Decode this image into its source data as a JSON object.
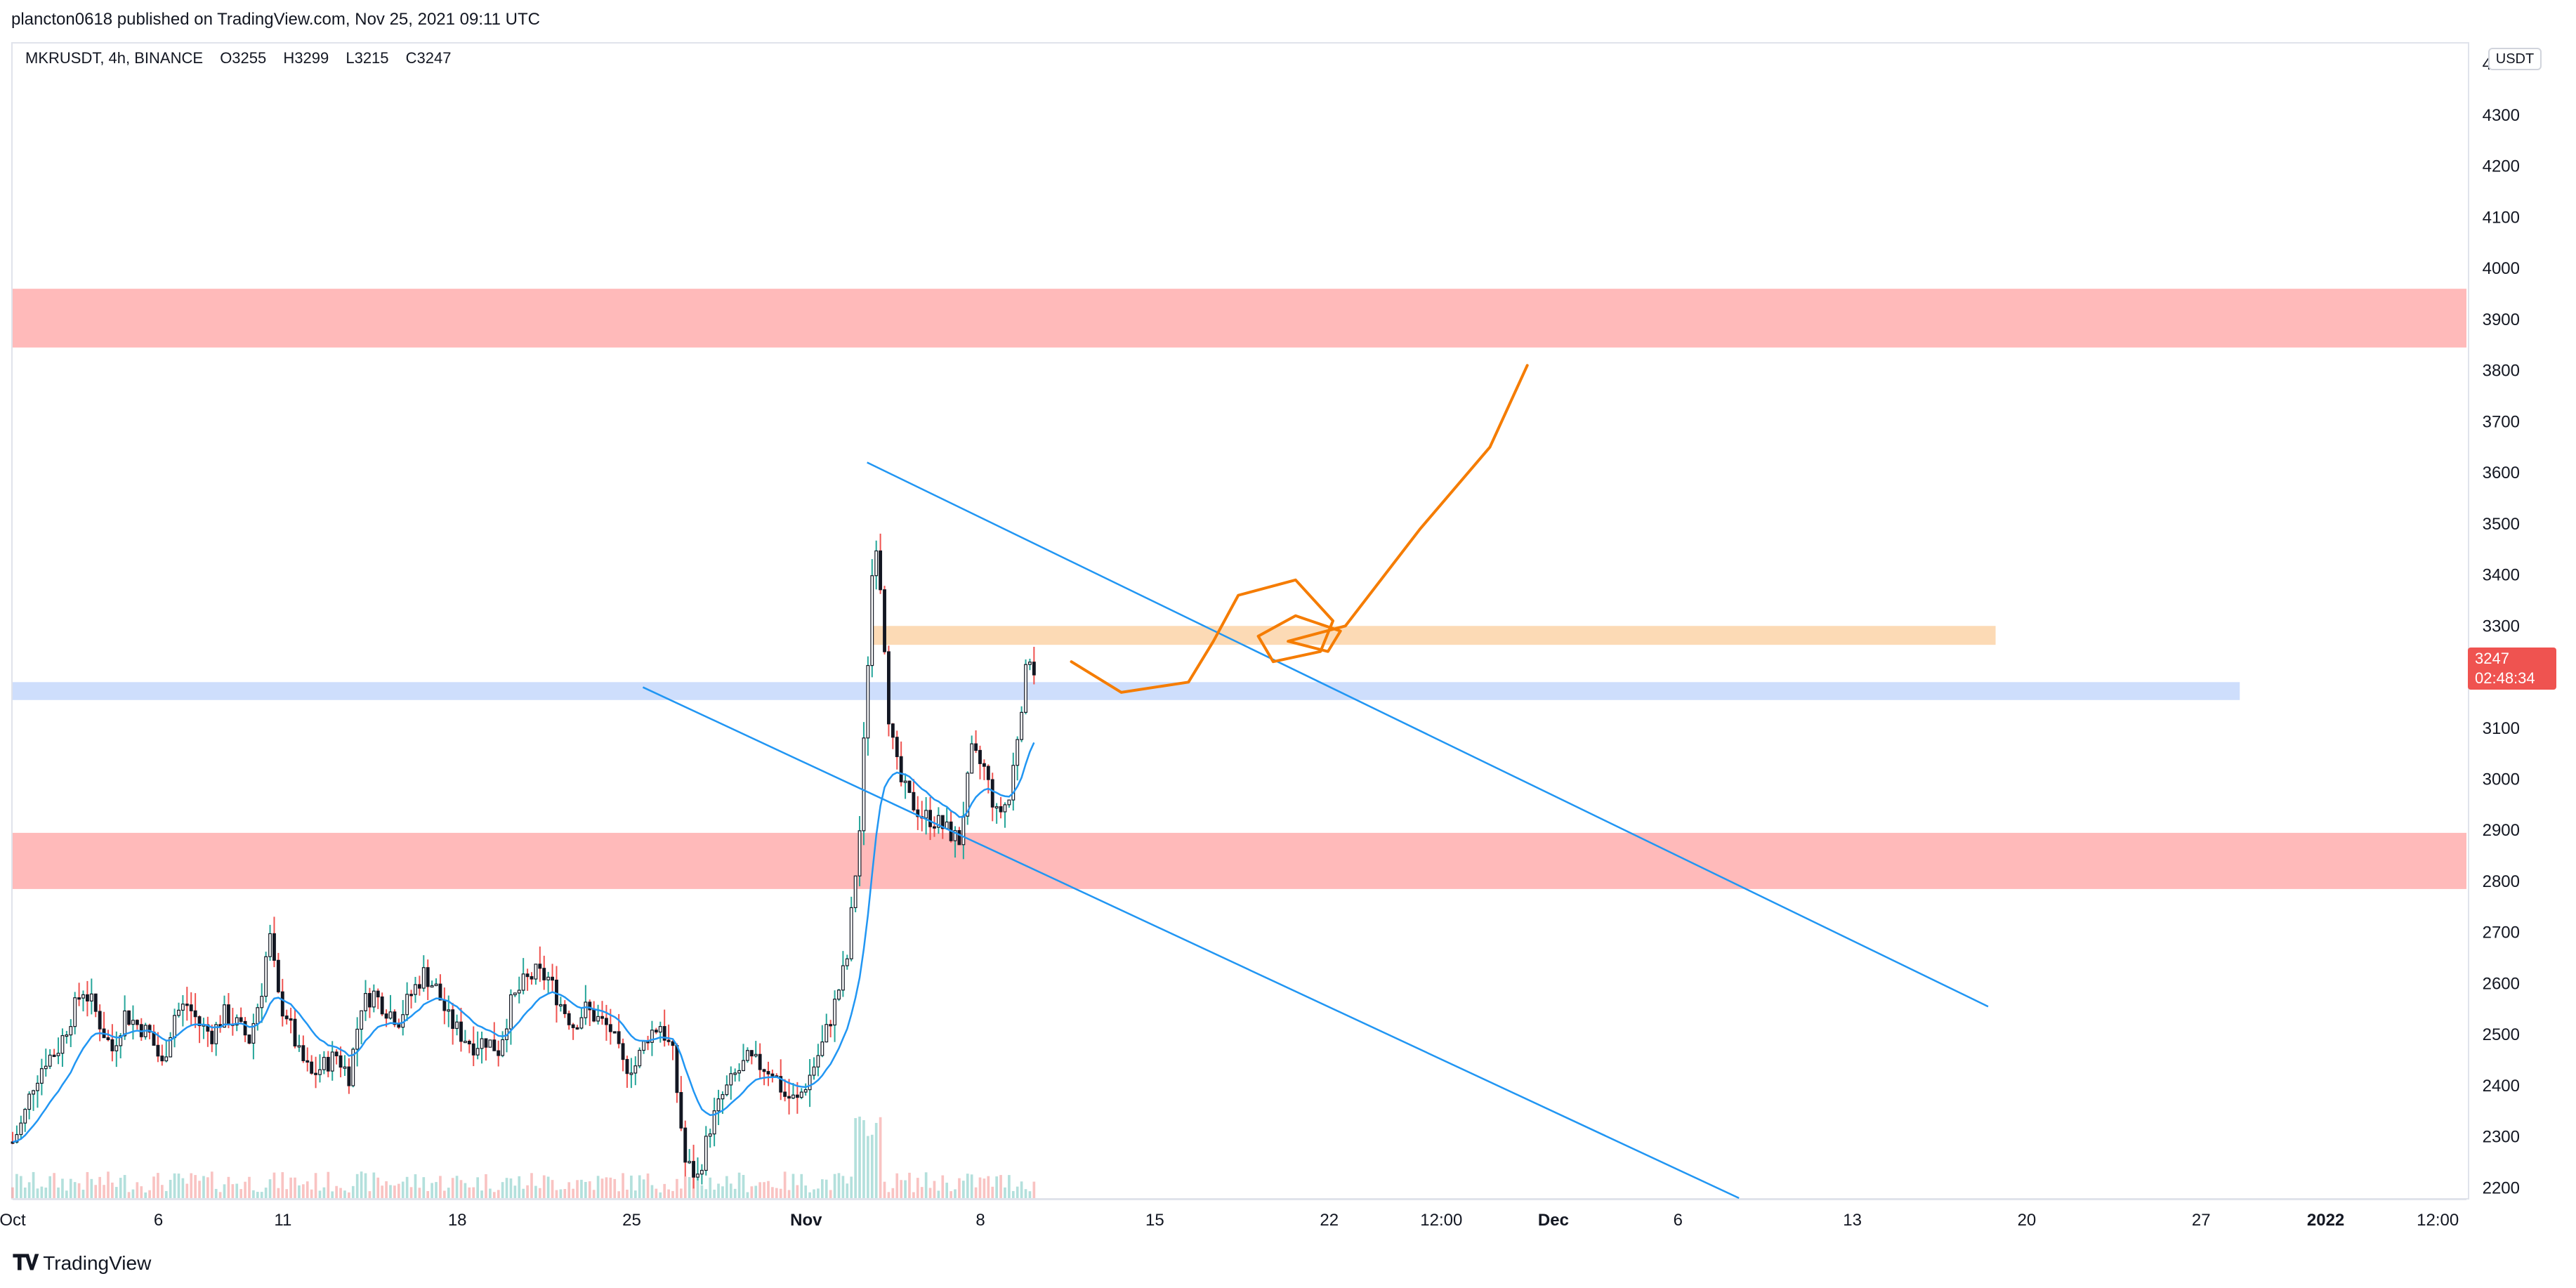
{
  "header": {
    "published": "plancton0618 published on TradingView.com, Nov 25, 2021 09:11 UTC"
  },
  "legend": {
    "symbol": "MKRUSDT, 4h, BINANCE",
    "open": "O3255",
    "high": "H3299",
    "low": "L3215",
    "close": "C3247"
  },
  "price_axis": {
    "unit": "USDT",
    "last_price": "3247",
    "countdown": "02:48:34",
    "last_price_color": "#ef5350"
  },
  "footer": {
    "brand": "TradingView",
    "logo_icon": "tradingview-logo-icon"
  },
  "colors": {
    "up": "#26a69a",
    "down": "#ef5350",
    "body": "#131722",
    "ma": "#2196f3",
    "trend": "#2196f3",
    "zone_red": "#ffb3b3",
    "zone_orange": "#fbd3a8",
    "zone_blue": "#c5d8fb",
    "drawing": "#f57c00"
  },
  "chart_data": {
    "type": "candlestick",
    "title": "MKRUSDT, 4h, BINANCE",
    "ylim": [
      2180,
      4440
    ],
    "y_ticks": [
      2200,
      2300,
      2400,
      2500,
      2600,
      2700,
      2800,
      2900,
      3000,
      3100,
      3200,
      3300,
      3400,
      3500,
      3600,
      3700,
      3800,
      3900,
      4000,
      4100,
      4200,
      4300,
      4400
    ],
    "x_range_days": [
      0,
      41.5
    ],
    "x_ticks": [
      {
        "label": "Oct",
        "day": 0
      },
      {
        "label": "6",
        "day": 5.85
      },
      {
        "label": "11",
        "day": 10.85
      },
      {
        "label": "18",
        "day": 17.85
      },
      {
        "label": "25",
        "day": 24.85
      },
      {
        "label": "Nov",
        "day": 31.85
      },
      {
        "label": "8",
        "day": 38.85
      },
      {
        "label": "15",
        "day": 45.85
      },
      {
        "label": "22",
        "day": 52.85
      },
      {
        "label": "12:00",
        "day": 57.35
      },
      {
        "label": "Dec",
        "day": 61.85
      },
      {
        "label": "6",
        "day": 66.85
      },
      {
        "label": "13",
        "day": 73.85
      },
      {
        "label": "20",
        "day": 80.85
      },
      {
        "label": "27",
        "day": 87.85
      },
      {
        "label": "2022",
        "day": 92.85
      },
      {
        "label": "12:00",
        "day": 97.35
      }
    ],
    "x_axis_days_start": 0,
    "x_axis_days_end": 98.5,
    "price_path": [
      [
        0,
        2290
      ],
      [
        0.4,
        2330
      ],
      [
        0.8,
        2400
      ],
      [
        1.3,
        2450
      ],
      [
        1.8,
        2470
      ],
      [
        2.3,
        2530
      ],
      [
        2.8,
        2590
      ],
      [
        3.2,
        2560
      ],
      [
        3.6,
        2510
      ],
      [
        4.0,
        2470
      ],
      [
        4.5,
        2540
      ],
      [
        5.0,
        2520
      ],
      [
        5.5,
        2500
      ],
      [
        6.0,
        2440
      ],
      [
        6.5,
        2540
      ],
      [
        7.0,
        2560
      ],
      [
        7.5,
        2520
      ],
      [
        8.0,
        2500
      ],
      [
        8.5,
        2540
      ],
      [
        9.0,
        2520
      ],
      [
        9.5,
        2490
      ],
      [
        10.0,
        2590
      ],
      [
        10.3,
        2700
      ],
      [
        10.7,
        2560
      ],
      [
        11.0,
        2540
      ],
      [
        11.5,
        2460
      ],
      [
        12.0,
        2420
      ],
      [
        12.5,
        2440
      ],
      [
        13.0,
        2460
      ],
      [
        13.5,
        2420
      ],
      [
        14.0,
        2560
      ],
      [
        14.5,
        2580
      ],
      [
        15.0,
        2550
      ],
      [
        15.5,
        2530
      ],
      [
        16.0,
        2580
      ],
      [
        16.5,
        2620
      ],
      [
        17.0,
        2590
      ],
      [
        17.5,
        2530
      ],
      [
        18.0,
        2500
      ],
      [
        18.5,
        2480
      ],
      [
        19.0,
        2490
      ],
      [
        19.5,
        2470
      ],
      [
        20.0,
        2560
      ],
      [
        20.5,
        2600
      ],
      [
        21.0,
        2620
      ],
      [
        21.5,
        2610
      ],
      [
        22.0,
        2560
      ],
      [
        22.5,
        2520
      ],
      [
        23.0,
        2550
      ],
      [
        23.5,
        2530
      ],
      [
        24.0,
        2510
      ],
      [
        24.5,
        2440
      ],
      [
        25.0,
        2440
      ],
      [
        25.5,
        2500
      ],
      [
        26.0,
        2520
      ],
      [
        26.5,
        2460
      ],
      [
        27.0,
        2250
      ],
      [
        27.5,
        2220
      ],
      [
        28.0,
        2320
      ],
      [
        28.5,
        2380
      ],
      [
        29.0,
        2420
      ],
      [
        29.5,
        2450
      ],
      [
        30.0,
        2440
      ],
      [
        30.5,
        2430
      ],
      [
        31.0,
        2380
      ],
      [
        31.5,
        2370
      ],
      [
        32.0,
        2420
      ],
      [
        32.5,
        2480
      ],
      [
        33.0,
        2560
      ],
      [
        33.5,
        2650
      ],
      [
        34.0,
        2900
      ],
      [
        34.3,
        3200
      ],
      [
        34.6,
        3500
      ],
      [
        34.9,
        3350
      ],
      [
        35.2,
        3100
      ],
      [
        35.6,
        3000
      ],
      [
        36.0,
        2960
      ],
      [
        36.5,
        2930
      ],
      [
        37.0,
        2920
      ],
      [
        37.5,
        2900
      ],
      [
        38.0,
        2880
      ],
      [
        38.5,
        3050
      ],
      [
        39.0,
        3020
      ],
      [
        39.5,
        2930
      ],
      [
        40.0,
        2960
      ],
      [
        40.5,
        3150
      ],
      [
        40.8,
        3250
      ],
      [
        41.1,
        3200
      ]
    ],
    "candles_note": "4h OHLC candles, Oct 1 to Nov 25 2021",
    "zones": [
      {
        "kind": "resistance",
        "low": 3845,
        "high": 3960,
        "color": "red"
      },
      {
        "kind": "support",
        "low": 2785,
        "high": 2895,
        "color": "red"
      },
      {
        "kind": "level",
        "low": 3155,
        "high": 3190,
        "color": "blue"
      },
      {
        "kind": "level",
        "low": 3263,
        "high": 3300,
        "color": "orange"
      }
    ],
    "trendlines": [
      {
        "from": {
          "day": 34.3,
          "price": 3620
        },
        "to": {
          "day": 79.3,
          "price": 2555
        }
      },
      {
        "from": {
          "day": 25.3,
          "price": 3180
        },
        "to": {
          "day": 69.3,
          "price": 2180
        }
      }
    ]
  }
}
